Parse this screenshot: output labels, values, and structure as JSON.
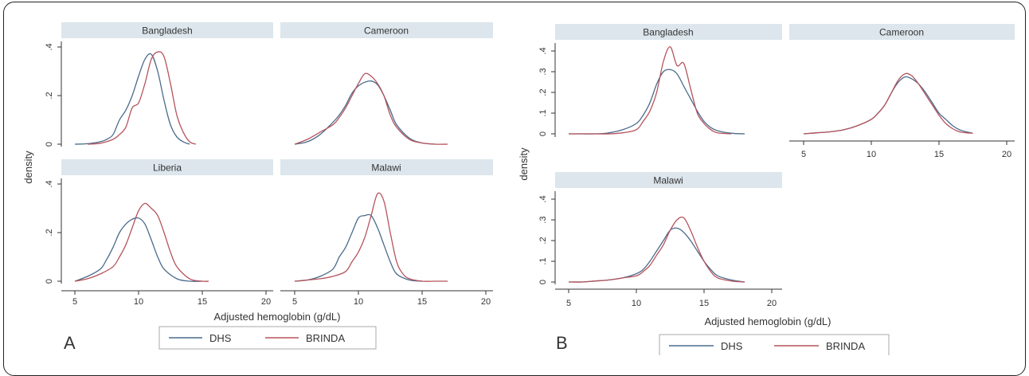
{
  "colors": {
    "dhs": "#4a6b8c",
    "brinda": "#b5545c",
    "strip": "#dce6ec",
    "axis": "#333333"
  },
  "figure": {
    "panel_a_letter": "A",
    "panel_b_letter": "B",
    "ylabel": "density",
    "xlabel": "Adjusted hemoglobin (g/dL)",
    "legend": [
      "DHS",
      "BRINDA"
    ]
  },
  "chart_data": [
    {
      "type": "line",
      "panel": "A",
      "xlabel": "Adjusted hemoglobin (g/dL)",
      "ylabel": "density",
      "xlim": [
        4,
        20
      ],
      "ylim": [
        0,
        0.42
      ],
      "xticks": [
        "5",
        "10",
        "15",
        "20"
      ],
      "yticks": [
        "0",
        ".2",
        ".4"
      ],
      "legend": [
        "DHS",
        "BRINDA"
      ],
      "facets": [
        {
          "title": "Bangladesh",
          "series": [
            {
              "name": "DHS",
              "x": [
                5,
                6,
                7,
                7.5,
                8,
                8.5,
                9,
                9.5,
                10,
                10.5,
                11,
                11.5,
                12,
                12.5,
                13,
                13.5,
                14
              ],
              "y": [
                0,
                0.002,
                0.01,
                0.02,
                0.04,
                0.1,
                0.14,
                0.2,
                0.28,
                0.35,
                0.37,
                0.3,
                0.18,
                0.08,
                0.03,
                0.01,
                0
              ]
            },
            {
              "name": "BRINDA",
              "x": [
                6,
                7,
                8,
                8.5,
                9,
                9.5,
                10,
                10.5,
                11,
                11.5,
                12,
                12.5,
                13,
                13.5,
                14,
                14.5
              ],
              "y": [
                0,
                0.004,
                0.02,
                0.04,
                0.07,
                0.15,
                0.17,
                0.25,
                0.35,
                0.38,
                0.36,
                0.25,
                0.12,
                0.05,
                0.01,
                0
              ]
            }
          ]
        },
        {
          "title": "Cameroon",
          "series": [
            {
              "name": "DHS",
              "x": [
                5,
                6,
                7,
                8,
                8.5,
                9,
                9.5,
                10,
                10.5,
                11,
                11.5,
                12,
                12.5,
                13,
                14,
                15,
                16
              ],
              "y": [
                0,
                0.01,
                0.04,
                0.09,
                0.12,
                0.16,
                0.21,
                0.24,
                0.255,
                0.26,
                0.245,
                0.2,
                0.14,
                0.08,
                0.025,
                0.005,
                0
              ]
            },
            {
              "name": "BRINDA",
              "x": [
                5,
                6,
                7,
                8,
                8.5,
                9,
                9.5,
                10,
                10.5,
                11,
                11.5,
                12,
                12.5,
                13,
                14,
                15,
                16,
                17
              ],
              "y": [
                0,
                0.02,
                0.05,
                0.08,
                0.11,
                0.15,
                0.2,
                0.25,
                0.29,
                0.28,
                0.25,
                0.2,
                0.12,
                0.07,
                0.02,
                0.005,
                0,
                0
              ]
            }
          ]
        },
        {
          "title": "Liberia",
          "series": [
            {
              "name": "DHS",
              "x": [
                5,
                6,
                7,
                7.5,
                8,
                8.5,
                9,
                9.5,
                10,
                10.5,
                11,
                11.5,
                12,
                13,
                14,
                15
              ],
              "y": [
                0,
                0.02,
                0.05,
                0.09,
                0.14,
                0.2,
                0.235,
                0.255,
                0.26,
                0.235,
                0.17,
                0.1,
                0.05,
                0.01,
                0,
                0
              ]
            },
            {
              "name": "BRINDA",
              "x": [
                5,
                6,
                7,
                8,
                8.5,
                9,
                9.5,
                10,
                10.5,
                11,
                11.5,
                12,
                12.5,
                13,
                14,
                15,
                15.5
              ],
              "y": [
                0,
                0.01,
                0.03,
                0.06,
                0.1,
                0.15,
                0.22,
                0.29,
                0.32,
                0.3,
                0.27,
                0.2,
                0.12,
                0.06,
                0.01,
                0,
                0
              ]
            }
          ]
        },
        {
          "title": "Malawi",
          "series": [
            {
              "name": "DHS",
              "x": [
                5,
                6,
                7,
                8,
                8.5,
                9,
                9.5,
                10,
                10.5,
                11,
                11.5,
                12,
                12.5,
                13,
                14,
                15
              ],
              "y": [
                0,
                0.005,
                0.02,
                0.05,
                0.1,
                0.14,
                0.2,
                0.26,
                0.27,
                0.27,
                0.22,
                0.15,
                0.08,
                0.03,
                0.005,
                0
              ]
            },
            {
              "name": "BRINDA",
              "x": [
                5,
                6,
                7,
                8,
                9,
                9.5,
                10,
                10.5,
                11,
                11.5,
                12,
                12.5,
                13,
                13.5,
                14,
                15,
                16,
                17
              ],
              "y": [
                0,
                0.005,
                0.01,
                0.02,
                0.04,
                0.08,
                0.12,
                0.18,
                0.27,
                0.36,
                0.33,
                0.2,
                0.08,
                0.03,
                0.01,
                0,
                0,
                0
              ]
            }
          ]
        }
      ]
    },
    {
      "type": "line",
      "panel": "B",
      "xlabel": "Adjusted hemoglobin (g/dL)",
      "ylabel": "density",
      "xlim": [
        4,
        20
      ],
      "ylim": [
        0,
        0.45
      ],
      "xticks": [
        "5",
        "10",
        "15",
        "20"
      ],
      "yticks": [
        "0",
        ".1",
        ".2",
        ".3",
        ".4"
      ],
      "legend": [
        "DHS",
        "BRINDA"
      ],
      "facets": [
        {
          "title": "Bangladesh",
          "series": [
            {
              "name": "DHS",
              "x": [
                5,
                6,
                7,
                8,
                9,
                10,
                10.5,
                11,
                11.5,
                12,
                12.5,
                13,
                13.5,
                14,
                14.5,
                15,
                15.5,
                16,
                17,
                18
              ],
              "y": [
                0,
                0,
                0,
                0.005,
                0.02,
                0.05,
                0.09,
                0.15,
                0.24,
                0.3,
                0.31,
                0.29,
                0.23,
                0.17,
                0.11,
                0.06,
                0.03,
                0.015,
                0.003,
                0
              ]
            },
            {
              "name": "BRINDA",
              "x": [
                5,
                7,
                8,
                9,
                10,
                10.5,
                11,
                11.5,
                12,
                12.5,
                13,
                13.5,
                14,
                14.5,
                15,
                15.5,
                16,
                17
              ],
              "y": [
                0,
                0,
                0,
                0.005,
                0.02,
                0.06,
                0.11,
                0.2,
                0.35,
                0.42,
                0.33,
                0.34,
                0.22,
                0.1,
                0.05,
                0.02,
                0.005,
                0
              ]
            }
          ]
        },
        {
          "title": "Cameroon",
          "series": [
            {
              "name": "DHS",
              "x": [
                5,
                6,
                7,
                8,
                9,
                10,
                10.5,
                11,
                11.5,
                12,
                12.5,
                13,
                13.5,
                14,
                14.5,
                15,
                15.5,
                16,
                16.5,
                17,
                17.5
              ],
              "y": [
                0,
                0.005,
                0.01,
                0.02,
                0.04,
                0.07,
                0.1,
                0.14,
                0.2,
                0.25,
                0.275,
                0.265,
                0.24,
                0.2,
                0.15,
                0.1,
                0.07,
                0.04,
                0.02,
                0.01,
                0.003
              ]
            },
            {
              "name": "BRINDA",
              "x": [
                5,
                6,
                7,
                8,
                9,
                10,
                10.5,
                11,
                11.5,
                12,
                12.5,
                13,
                13.5,
                14,
                14.5,
                15,
                15.5,
                16,
                16.5,
                17,
                17.5
              ],
              "y": [
                0,
                0.005,
                0.01,
                0.02,
                0.04,
                0.07,
                0.1,
                0.14,
                0.2,
                0.26,
                0.29,
                0.28,
                0.24,
                0.19,
                0.14,
                0.09,
                0.05,
                0.025,
                0.01,
                0.005,
                0.003
              ]
            }
          ]
        },
        {
          "title": "Malawi",
          "series": [
            {
              "name": "DHS",
              "x": [
                5,
                6,
                7,
                8,
                9,
                10,
                10.5,
                11,
                11.5,
                12,
                12.5,
                13,
                13.5,
                14,
                14.5,
                15,
                15.5,
                16,
                17,
                18
              ],
              "y": [
                0,
                0,
                0.005,
                0.01,
                0.02,
                0.04,
                0.06,
                0.1,
                0.15,
                0.2,
                0.25,
                0.26,
                0.24,
                0.2,
                0.15,
                0.1,
                0.06,
                0.03,
                0.01,
                0
              ]
            },
            {
              "name": "BRINDA",
              "x": [
                5,
                6,
                7,
                8,
                9,
                10,
                10.5,
                11,
                11.5,
                12,
                12.5,
                13,
                13.5,
                14,
                14.5,
                15,
                15.5,
                16,
                17,
                18
              ],
              "y": [
                0,
                0,
                0.005,
                0.01,
                0.02,
                0.03,
                0.05,
                0.08,
                0.13,
                0.18,
                0.25,
                0.3,
                0.31,
                0.25,
                0.17,
                0.1,
                0.05,
                0.02,
                0.005,
                0
              ]
            }
          ]
        }
      ]
    }
  ]
}
